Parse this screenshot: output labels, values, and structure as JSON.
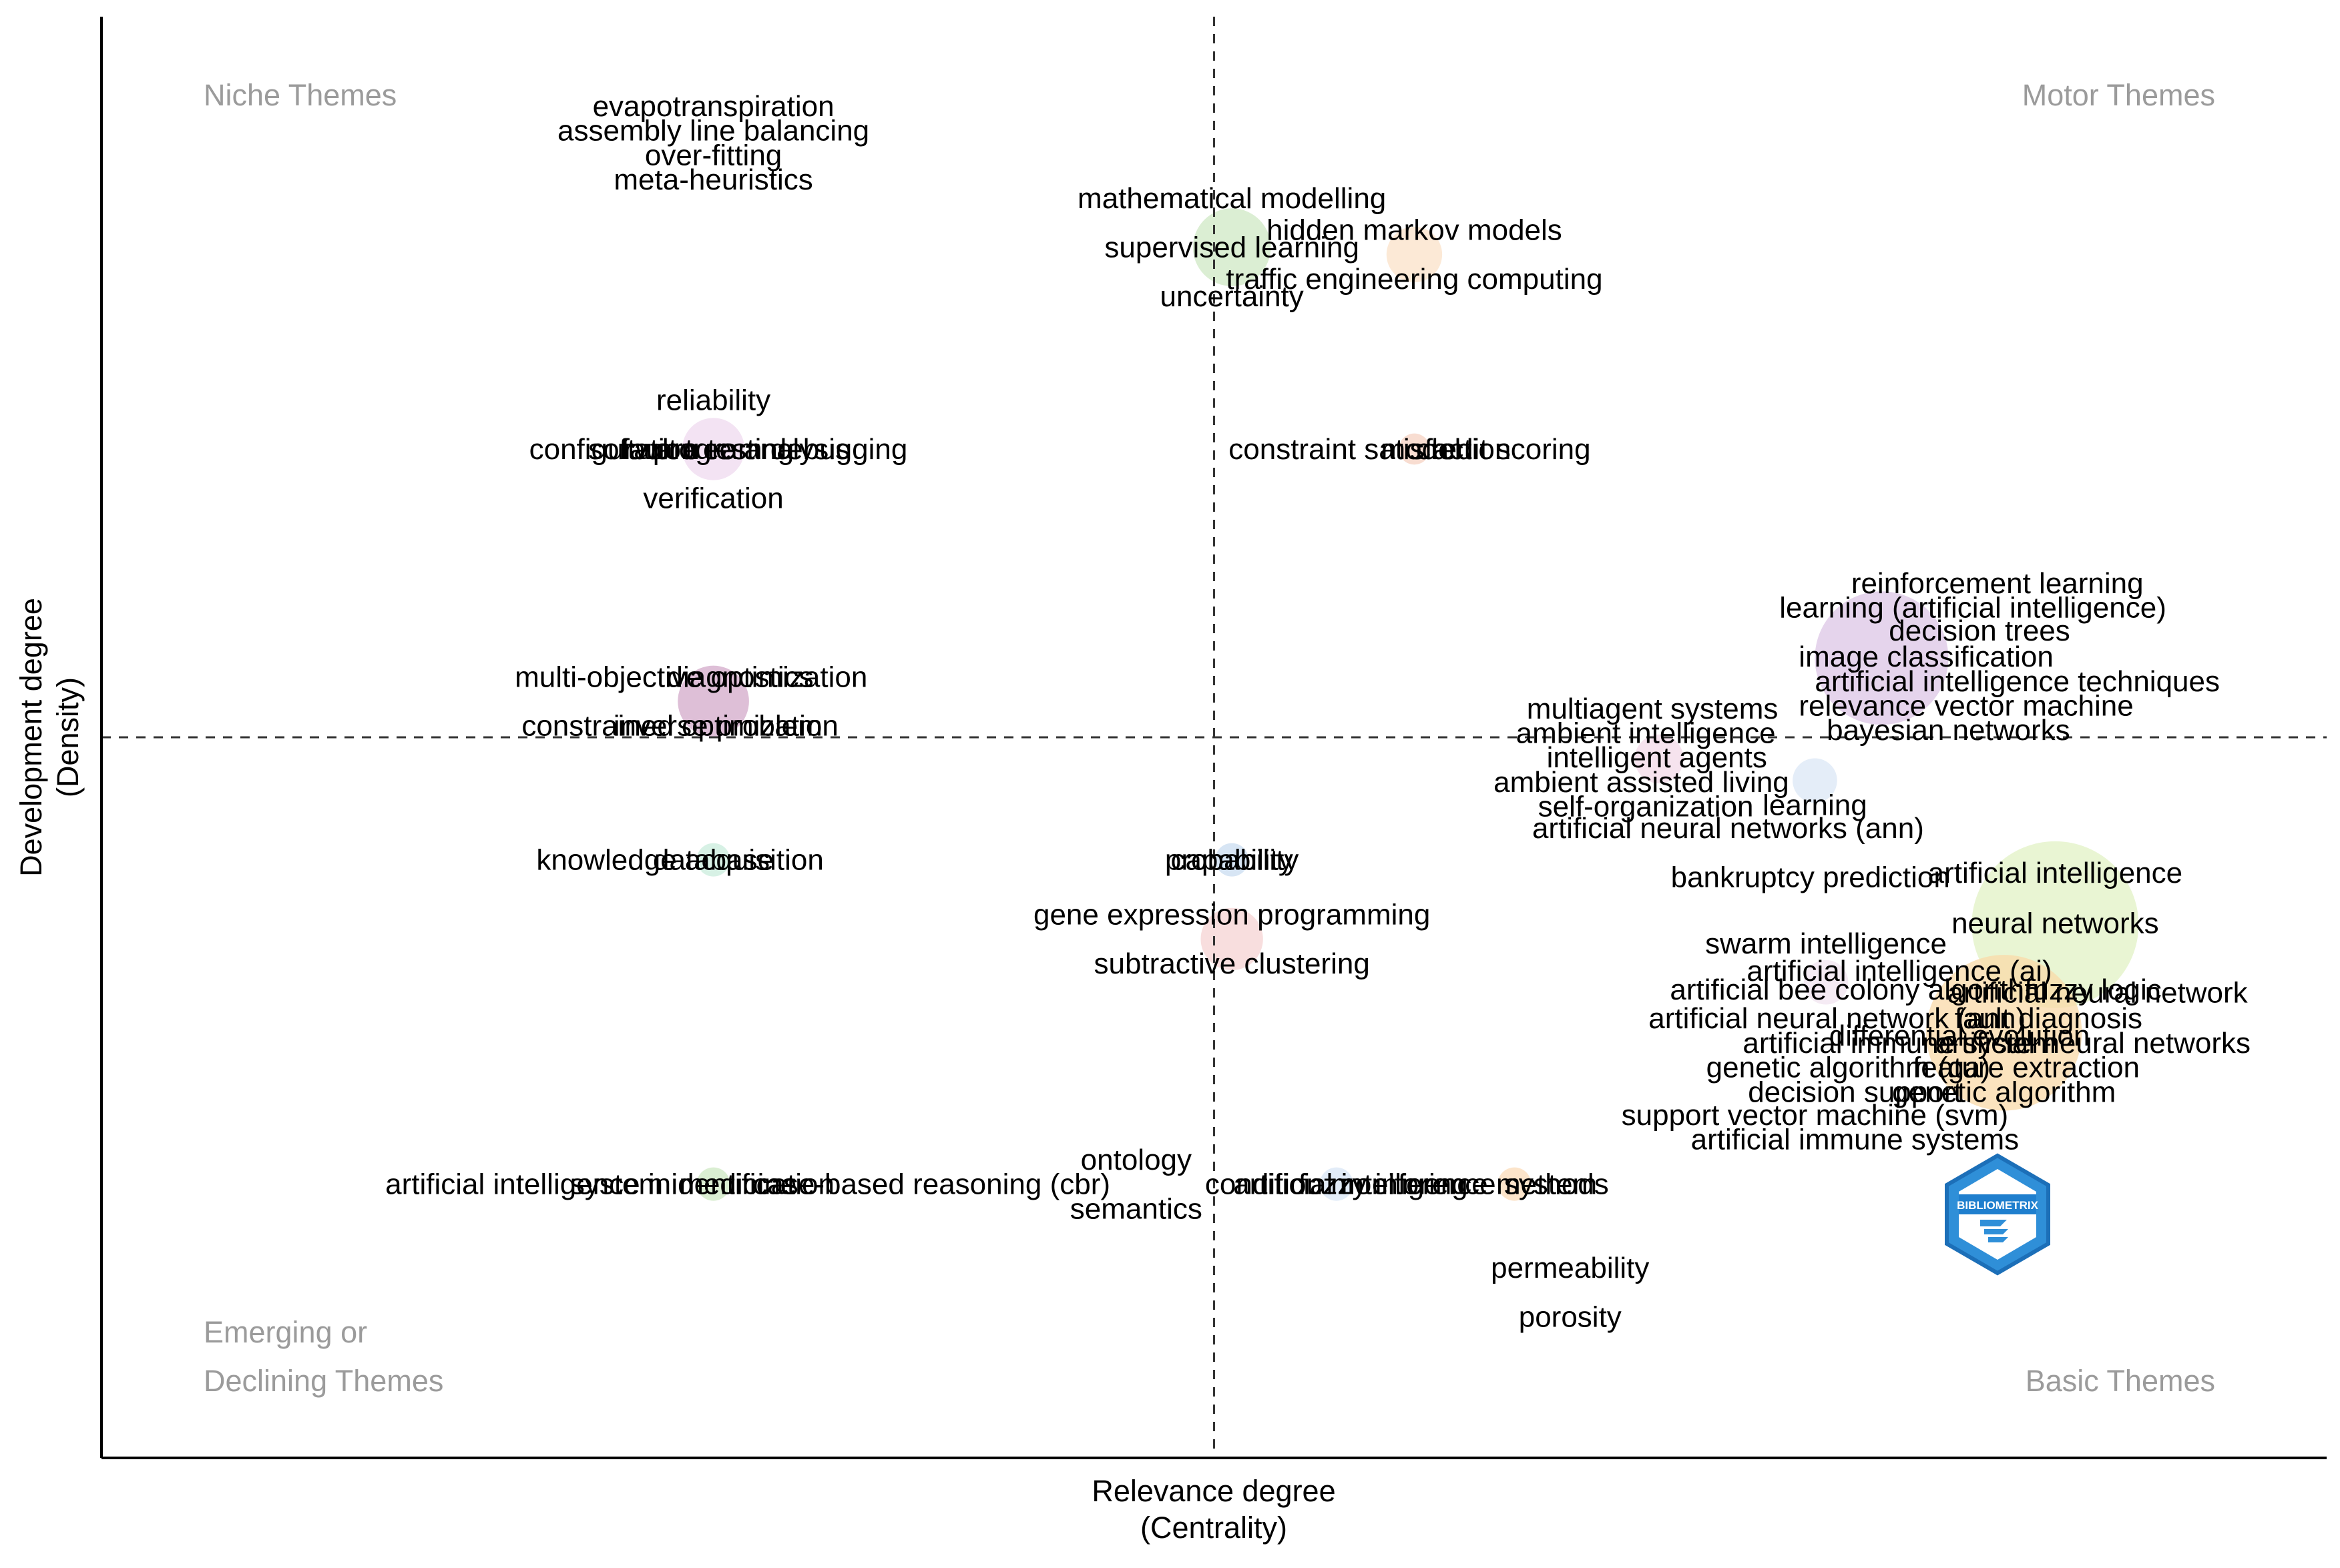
{
  "chart_data": {
    "type": "scatter",
    "subtype": "thematic-map",
    "xlabel": "Relevance degree",
    "xlabel_sub": "(Centrality)",
    "ylabel": "Development degree",
    "ylabel_sub": "(Density)",
    "xlim": [
      0,
      1
    ],
    "ylim": [
      0,
      1
    ],
    "quadrant_split": {
      "x": 0.5,
      "y": 0.5
    },
    "quadrants": {
      "top_left": "Niche Themes",
      "top_right": "Motor Themes",
      "bottom_left_line1": "Emerging or",
      "bottom_left_line2": "Declining Themes",
      "bottom_right": "Basic Themes"
    },
    "logo_text": "BIBLIOMETRIX",
    "clusters": [
      {
        "x": 0.275,
        "y": 0.885,
        "size": 0.0,
        "color": "#e7cfe9",
        "labels": [
          {
            "text": "evapotranspiration",
            "dx": 0.0,
            "dy": 0.053
          },
          {
            "text": "assembly line balancing",
            "dx": 0.0,
            "dy": 0.036
          },
          {
            "text": "over-fitting",
            "dx": 0.0,
            "dy": 0.019
          },
          {
            "text": "meta-heuristics",
            "dx": 0.0,
            "dy": 0.002
          }
        ]
      },
      {
        "x": 0.508,
        "y": 0.84,
        "size": 0.035,
        "color": "#cfe8c4",
        "labels": [
          {
            "text": "mathematical modelling",
            "dx": 0.0,
            "dy": 0.034
          },
          {
            "text": "supervised learning",
            "dx": 0.0,
            "dy": 0.0
          },
          {
            "text": "uncertainty",
            "dx": 0.0,
            "dy": -0.034
          }
        ]
      },
      {
        "x": 0.59,
        "y": 0.835,
        "size": 0.025,
        "color": "#fbe2c8",
        "labels": [
          {
            "text": "hidden markov models",
            "dx": 0.0,
            "dy": 0.017
          },
          {
            "text": "traffic engineering computing",
            "dx": 0.0,
            "dy": -0.017
          }
        ]
      },
      {
        "x": 0.275,
        "y": 0.7,
        "size": 0.028,
        "color": "#efd9ef",
        "labels": [
          {
            "text": "reliability",
            "dx": 0.0,
            "dy": 0.034
          },
          {
            "text": "configuration",
            "dx": -0.045,
            "dy": 0.0
          },
          {
            "text": "software testing",
            "dx": -0.01,
            "dy": 0.0
          },
          {
            "text": "fault tree analysis",
            "dx": 0.01,
            "dy": 0.0
          },
          {
            "text": "program debugging",
            "dx": 0.03,
            "dy": 0.0
          },
          {
            "text": "verification",
            "dx": 0.0,
            "dy": -0.034
          }
        ]
      },
      {
        "x": 0.59,
        "y": 0.7,
        "size": 0.014,
        "color": "#f6d2c2",
        "labels": [
          {
            "text": "constraint satisfaction",
            "dx": -0.02,
            "dy": 0.0
          },
          {
            "text": "model",
            "dx": 0.003,
            "dy": 0.0
          },
          {
            "text": "credit scoring",
            "dx": 0.04,
            "dy": 0.0
          }
        ]
      },
      {
        "x": 0.275,
        "y": 0.525,
        "size": 0.032,
        "color": "#d3a9c9",
        "labels": [
          {
            "text": "multi-objective optimization",
            "dx": -0.01,
            "dy": 0.017
          },
          {
            "text": "diagnostics",
            "dx": 0.012,
            "dy": 0.017
          },
          {
            "text": "constrained optimization",
            "dx": -0.015,
            "dy": -0.017
          },
          {
            "text": "inverse problem",
            "dx": 0.002,
            "dy": -0.017
          }
        ]
      },
      {
        "x": 0.8,
        "y": 0.555,
        "size": 0.06,
        "color": "#dcc6e6",
        "labels": [
          {
            "text": "reinforcement learning",
            "dx": 0.052,
            "dy": 0.052
          },
          {
            "text": "learning (artificial intelligence)",
            "dx": 0.041,
            "dy": 0.035
          },
          {
            "text": "decision trees",
            "dx": 0.044,
            "dy": 0.019
          },
          {
            "text": "image classification",
            "dx": 0.02,
            "dy": 0.001
          },
          {
            "text": "artificial intelligence techniques",
            "dx": 0.061,
            "dy": -0.016
          },
          {
            "text": "relevance vector machine",
            "dx": 0.038,
            "dy": -0.033
          },
          {
            "text": "bayesian networks",
            "dx": 0.03,
            "dy": -0.05
          }
        ]
      },
      {
        "x": 0.7,
        "y": 0.485,
        "size": 0.022,
        "color": "#f3d9e8",
        "labels": [
          {
            "text": "multiagent systems",
            "dx": -0.003,
            "dy": 0.035
          },
          {
            "text": "ambient intelligence",
            "dx": -0.006,
            "dy": 0.018
          },
          {
            "text": "intelligent agents",
            "dx": -0.001,
            "dy": 0.001
          },
          {
            "text": "ambient assisted living",
            "dx": -0.008,
            "dy": -0.016
          },
          {
            "text": "self-organization",
            "dx": -0.006,
            "dy": -0.033
          }
        ]
      },
      {
        "x": 0.77,
        "y": 0.47,
        "size": 0.02,
        "color": "#dbe7f5",
        "labels": [
          {
            "text": "learning",
            "dx": 0.0,
            "dy": -0.017
          },
          {
            "text": "artificial neural networks (ann)",
            "dx": -0.039,
            "dy": -0.033
          },
          {
            "text": "bankruptcy prediction",
            "dx": -0.002,
            "dy": -0.067
          }
        ]
      },
      {
        "x": 0.275,
        "y": 0.415,
        "size": 0.015,
        "color": "#c9ecdc",
        "labels": [
          {
            "text": "knowledge acquisition",
            "dx": -0.015,
            "dy": 0.0
          },
          {
            "text": "database",
            "dx": 0.0,
            "dy": 0.0
          }
        ]
      },
      {
        "x": 0.508,
        "y": 0.415,
        "size": 0.015,
        "color": "#c9dcf0",
        "labels": [
          {
            "text": "probability",
            "dx": 0.0,
            "dy": 0.0
          },
          {
            "text": "capability",
            "dx": 0.0,
            "dy": 0.0
          }
        ]
      },
      {
        "x": 0.508,
        "y": 0.36,
        "size": 0.028,
        "color": "#f6d3d3",
        "labels": [
          {
            "text": "gene expression programming",
            "dx": 0.0,
            "dy": 0.017
          },
          {
            "text": "subtractive clustering",
            "dx": 0.0,
            "dy": -0.017
          }
        ]
      },
      {
        "x": 0.878,
        "y": 0.37,
        "size": 0.075,
        "color": "#e1f2c4",
        "labels": [
          {
            "text": "artificial intelligence",
            "dx": 0.0,
            "dy": 0.036
          },
          {
            "text": "neural networks",
            "dx": 0.0,
            "dy": 0.001
          }
        ]
      },
      {
        "x": 0.775,
        "y": 0.33,
        "size": 0.02,
        "color": "#f2e4f0",
        "labels": [
          {
            "text": "swarm intelligence",
            "dx": 0.0,
            "dy": 0.027
          },
          {
            "text": "artificial intelligence (ai)",
            "dx": 0.033,
            "dy": 0.008
          }
        ]
      },
      {
        "x": 0.855,
        "y": 0.295,
        "size": 0.07,
        "color": "#f9d9a8",
        "labels": [
          {
            "text": "artificial bee colony algorithm",
            "dx": -0.065,
            "dy": 0.03
          },
          {
            "text": "fuzzy logic",
            "dx": 0.04,
            "dy": 0.03
          },
          {
            "text": "artificial neural network",
            "dx": 0.042,
            "dy": 0.028
          },
          {
            "text": "artificial neural network (ann)",
            "dx": -0.075,
            "dy": 0.01
          },
          {
            "text": "fault diagnosis",
            "dx": 0.02,
            "dy": 0.01
          },
          {
            "text": "differential evolution",
            "dx": -0.02,
            "dy": -0.002
          },
          {
            "text": "artificial immune system",
            "dx": -0.047,
            "dy": -0.007
          },
          {
            "text": "artificial neural networks",
            "dx": 0.04,
            "dy": -0.007
          },
          {
            "text": "genetic algorithm (ga)",
            "dx": -0.07,
            "dy": -0.024
          },
          {
            "text": "feature extraction",
            "dx": 0.01,
            "dy": -0.024
          },
          {
            "text": "decision support",
            "dx": -0.067,
            "dy": -0.041
          },
          {
            "text": "genetic algorithm",
            "dx": 0.0,
            "dy": -0.041
          },
          {
            "text": "support vector machine (svm)",
            "dx": -0.085,
            "dy": -0.057
          },
          {
            "text": "artificial immune systems",
            "dx": -0.067,
            "dy": -0.074
          }
        ]
      },
      {
        "x": 0.275,
        "y": 0.19,
        "size": 0.015,
        "color": "#cde8c3",
        "labels": [
          {
            "text": "artificial intelligence in medicine",
            "dx": -0.055,
            "dy": 0.0
          },
          {
            "text": "system identification",
            "dx": -0.005,
            "dy": 0.0
          },
          {
            "text": "case-based reasoning (cbr)",
            "dx": 0.098,
            "dy": 0.0
          }
        ]
      },
      {
        "x": 0.555,
        "y": 0.19,
        "size": 0.015,
        "color": "#d8e6f5",
        "labels": [
          {
            "text": "condition monitoring",
            "dx": 0.0,
            "dy": 0.0
          },
          {
            "text": "artificial intelligence methods",
            "dx": 0.038,
            "dy": 0.0
          }
        ]
      },
      {
        "x": 0.635,
        "y": 0.19,
        "size": 0.015,
        "color": "#fbdbb8",
        "labels": [
          {
            "text": "fuzzy inference system",
            "dx": -0.03,
            "dy": 0.0
          }
        ]
      },
      {
        "x": 0.465,
        "y": 0.19,
        "size": 0.0,
        "color": "#e8e8e8",
        "labels": [
          {
            "text": "ontology",
            "dx": 0.0,
            "dy": 0.017
          },
          {
            "text": "semantics",
            "dx": 0.0,
            "dy": -0.017
          }
        ]
      },
      {
        "x": 0.66,
        "y": 0.115,
        "size": 0.0,
        "color": "#e8e8e8",
        "labels": [
          {
            "text": "permeability",
            "dx": 0.0,
            "dy": 0.017
          },
          {
            "text": "porosity",
            "dx": 0.0,
            "dy": -0.017
          }
        ]
      }
    ]
  }
}
